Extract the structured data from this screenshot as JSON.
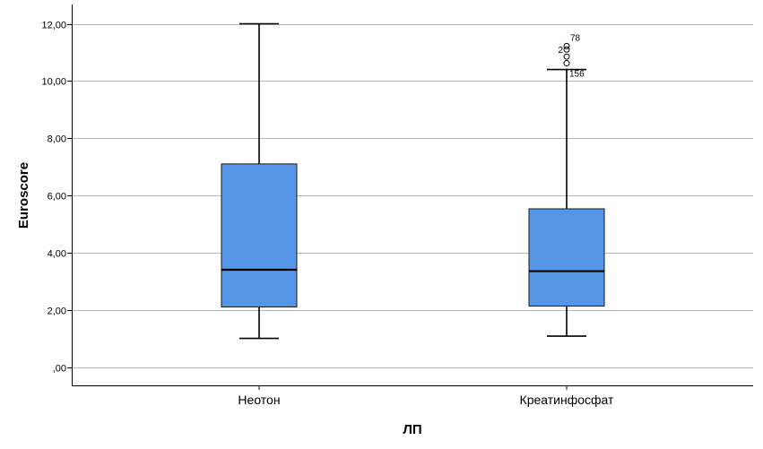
{
  "chart_data": {
    "type": "box",
    "xlabel": "ЛП",
    "ylabel": "Euroscore",
    "ylim": [
      -0.6,
      12.6
    ],
    "yticks": [
      0,
      2,
      4,
      6,
      8,
      10,
      12
    ],
    "ytick_labels": [
      ",00",
      "2,00",
      "4,00",
      "6,00",
      "8,00",
      "10,00",
      "12,00"
    ],
    "grid": true,
    "box_color": "#5596e6",
    "categories": [
      "Неотон",
      "Креатинфосфат"
    ],
    "boxes": [
      {
        "category": "Неотон",
        "whisker_low": 1.0,
        "q1": 2.1,
        "median": 3.4,
        "q3": 7.1,
        "whisker_high": 12.0,
        "outliers": []
      },
      {
        "category": "Креатинфосфат",
        "whisker_low": 1.08,
        "q1": 2.13,
        "median": 3.35,
        "q3": 5.53,
        "whisker_high": 10.4,
        "outliers": [
          {
            "value": 10.62,
            "label": "156"
          },
          {
            "value": 10.85,
            "label": ""
          },
          {
            "value": 11.1,
            "label": "2"
          },
          {
            "value": 11.22,
            "label": "78"
          }
        ]
      }
    ]
  }
}
